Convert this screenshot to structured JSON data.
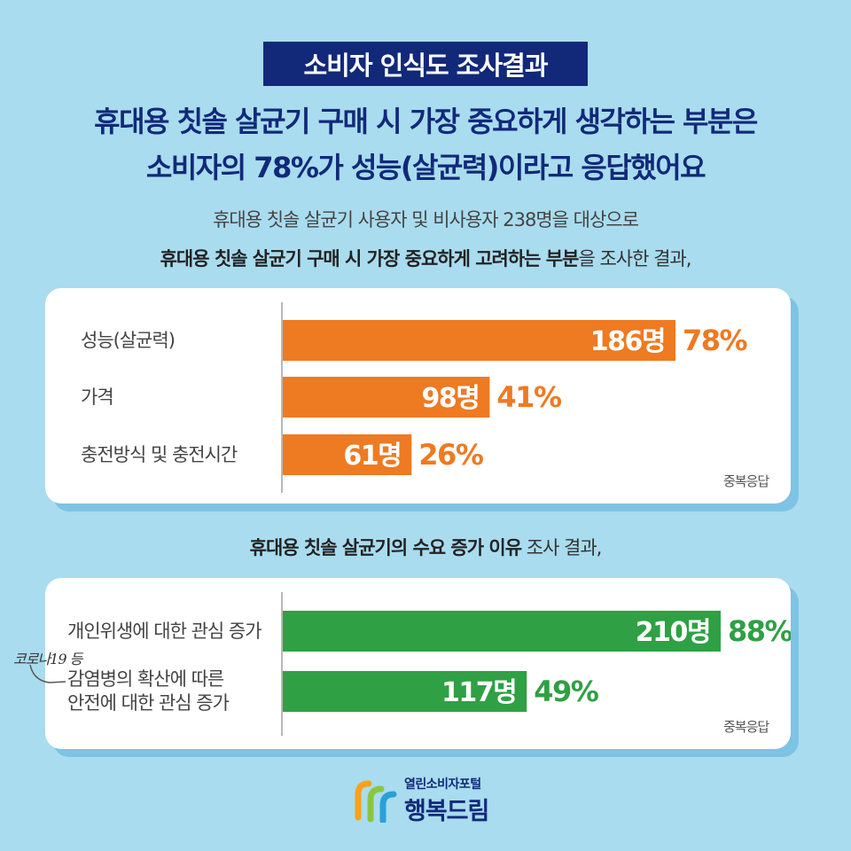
{
  "badge": "소비자 인식도 조사결과",
  "headline": {
    "line1": "휴대용 칫솔 살균기 구매 시 가장 중요하게 생각하는 부분은",
    "line2": "소비자의 78%가 성능(살균력)이라고 응답했어요"
  },
  "intro": {
    "line1": "휴대용 칫솔 살균기 사용자 및 비사용자 238명을 대상으로",
    "line2_bold": "휴대용 칫솔 살균기 구매 시 가장 중요하게 고려하는 부분",
    "line2_rest": "을 조사한 결과,"
  },
  "section2": {
    "title_bold": "휴대용 칫솔 살균기의 수요 증가 이유",
    "title_rest": " 조사 결과,"
  },
  "colors": {
    "orange": "#ee7a22",
    "green": "#2fa044",
    "navy": "#12297a",
    "background": "#a9dcee"
  },
  "chart_data": [
    {
      "type": "bar",
      "orientation": "horizontal",
      "categories": [
        "성능(살균력)",
        "가격",
        "충전방식 및 충전시간"
      ],
      "values": [
        186,
        98,
        61
      ],
      "value_labels": [
        "186명",
        "98명",
        "61명"
      ],
      "percent_labels": [
        "78%",
        "41%",
        "26%"
      ],
      "color": "#ee7a22",
      "note": "중복응답"
    },
    {
      "type": "bar",
      "orientation": "horizontal",
      "categories": [
        [
          "개인위생에 대한 관심 증가"
        ],
        [
          "감염병의 확산에 따른",
          "안전에 대한 관심 증가"
        ]
      ],
      "values": [
        210,
        117
      ],
      "value_labels": [
        "210명",
        "117명"
      ],
      "percent_labels": [
        "88%",
        "49%"
      ],
      "color": "#2fa044",
      "note": "중복응답",
      "annotation": "코로나19 등"
    }
  ],
  "logo": {
    "sub": "열린소비자포털",
    "main": "행복드림"
  }
}
